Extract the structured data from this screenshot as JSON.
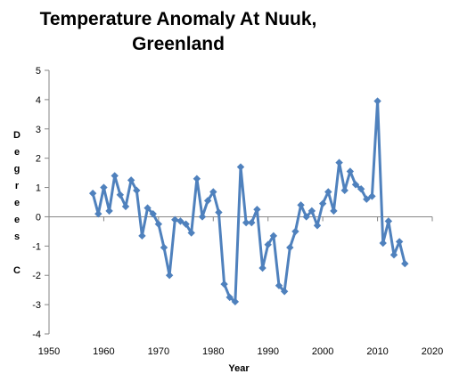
{
  "chart_data": {
    "type": "line",
    "title_lines": [
      "Temperature Anomaly At Nuuk,",
      "Greenland"
    ],
    "xlabel": "Year",
    "ylabel_letters": [
      "D",
      "e",
      "g",
      "r",
      "e",
      "e",
      "s",
      "",
      "C"
    ],
    "xlim": [
      1950,
      2020
    ],
    "ylim": [
      -4,
      5
    ],
    "xticks": [
      1950,
      1960,
      1970,
      1980,
      1990,
      2000,
      2010,
      2020
    ],
    "yticks": [
      -4,
      -3,
      -2,
      -1,
      0,
      1,
      2,
      3,
      4,
      5
    ],
    "grid": false,
    "legend": "none",
    "color": "#4f81bd",
    "series": [
      {
        "x": [
          1958,
          1959,
          1960,
          1961,
          1962,
          1963,
          1964,
          1965,
          1966,
          1967,
          1968,
          1969,
          1970,
          1971,
          1972,
          1973,
          1974,
          1975,
          1976,
          1977,
          1978,
          1979,
          1980,
          1981,
          1982,
          1983,
          1984,
          1985,
          1986,
          1987,
          1988,
          1989,
          1990,
          1991,
          1992,
          1993,
          1994,
          1995,
          1996,
          1997,
          1998,
          1999,
          2000,
          2001,
          2002,
          2003,
          2004,
          2005,
          2006,
          2007,
          2008,
          2009,
          2010,
          2011,
          2012,
          2013,
          2014,
          2015
        ],
        "y": [
          0.8,
          0.1,
          1.0,
          0.2,
          1.4,
          0.75,
          0.35,
          1.25,
          0.9,
          -0.65,
          0.3,
          0.1,
          -0.25,
          -1.05,
          -2.0,
          -0.1,
          -0.15,
          -0.25,
          -0.55,
          1.3,
          0.0,
          0.55,
          0.85,
          0.15,
          -2.3,
          -2.75,
          -2.9,
          1.7,
          -0.2,
          -0.2,
          0.25,
          -1.75,
          -0.95,
          -0.65,
          -2.35,
          -2.55,
          -1.05,
          -0.5,
          0.4,
          0.0,
          0.2,
          -0.3,
          0.45,
          0.85,
          0.2,
          1.85,
          0.9,
          1.55,
          1.1,
          0.95,
          0.6,
          0.7,
          3.95,
          -0.9,
          -0.15,
          -1.3,
          -0.85,
          -1.6
        ]
      }
    ]
  }
}
